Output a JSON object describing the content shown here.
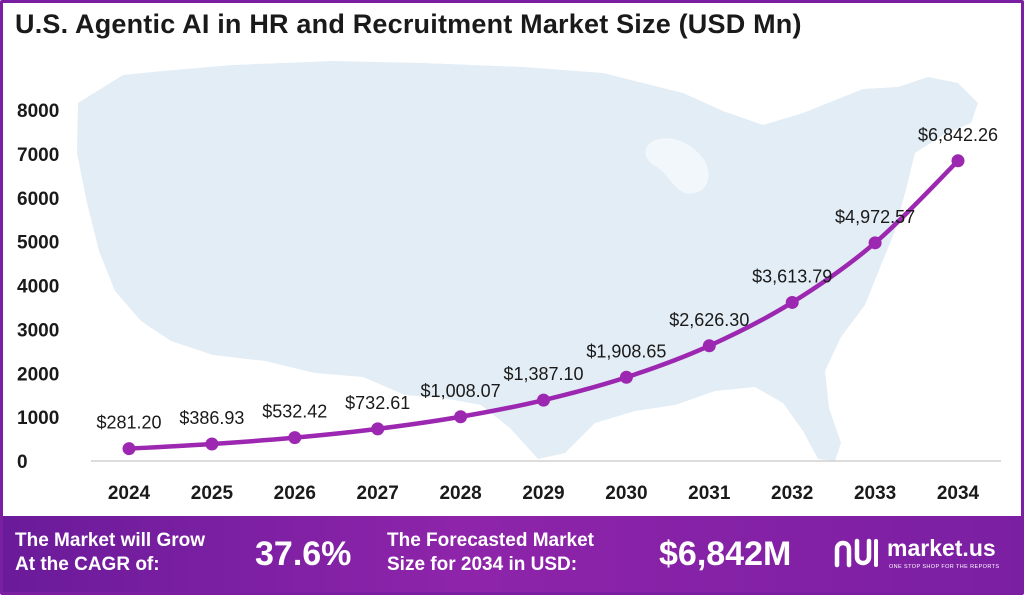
{
  "chart_data": {
    "type": "line",
    "title": "U.S. Agentic AI in HR and Recruitment Market Size (USD Mn)",
    "categories": [
      "2024",
      "2025",
      "2026",
      "2027",
      "2028",
      "2029",
      "2030",
      "2031",
      "2032",
      "2033",
      "2034"
    ],
    "values": [
      281.2,
      386.93,
      532.42,
      732.61,
      1008.07,
      1387.1,
      1908.65,
      2626.3,
      3613.79,
      4972.57,
      6842.26
    ],
    "data_labels": [
      "$281.20",
      "$386.93",
      "$532.42",
      "$732.61",
      "$1,008.07",
      "$1,387.10",
      "$1,908.65",
      "$2,626.30",
      "$3,613.79",
      "$4,972.57",
      "$6,842.26"
    ],
    "yticks": [
      "0",
      "1000",
      "2000",
      "3000",
      "4000",
      "5000",
      "6000",
      "7000",
      "8000"
    ],
    "ylim": [
      0,
      8000
    ],
    "xlabel": "",
    "ylabel": "",
    "grid": false,
    "colors": {
      "line": "#9c27b0",
      "marker": "#9c27b0",
      "background_map": "#e3edf5"
    }
  },
  "footer": {
    "cagr_label": "The Market will Grow\nAt the CAGR of:",
    "cagr_value": "37.6%",
    "forecast_label": "The Forecasted Market\nSize for 2034 in USD:",
    "forecast_value": "$6,842M",
    "brand_name": "market.us",
    "brand_tagline": "ONE STOP SHOP FOR THE REPORTS"
  }
}
